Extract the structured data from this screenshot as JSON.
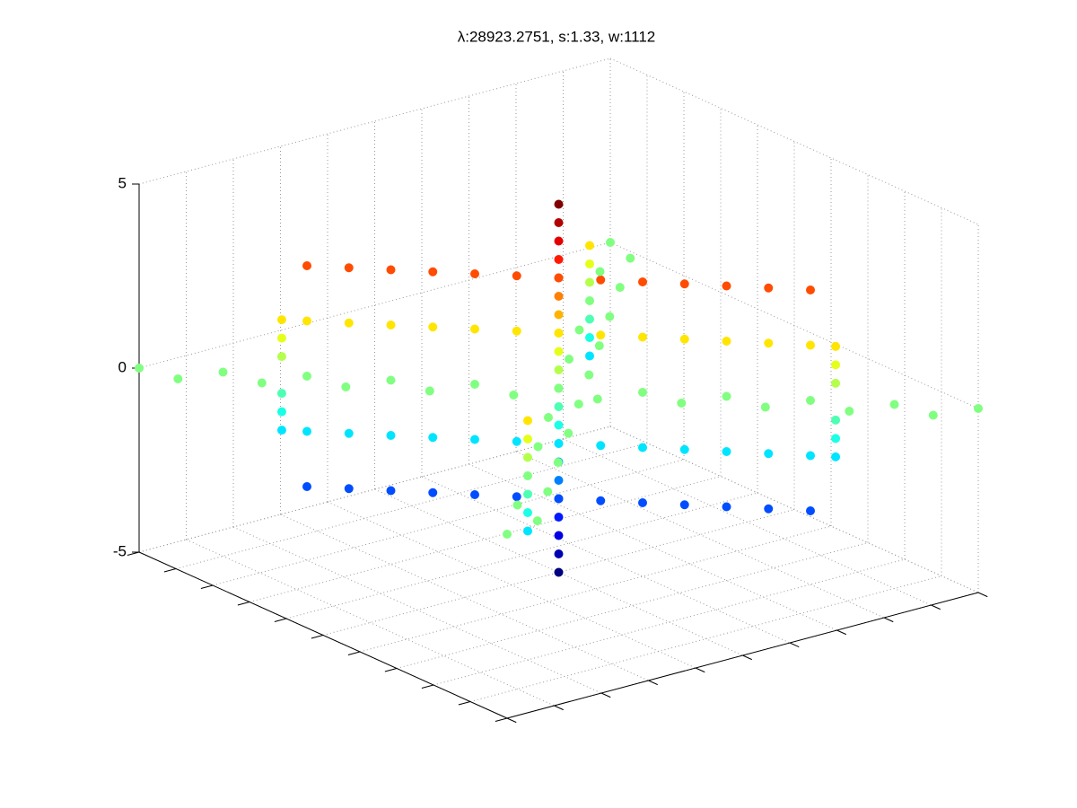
{
  "chart_data": {
    "type": "scatter3d",
    "title": "λ:28923.2751, s:1.33, w:1112",
    "colormap": "jet",
    "grid": true,
    "xlim": [
      -5,
      5
    ],
    "ylim": [
      -5,
      5
    ],
    "zlim": [
      -5,
      5
    ],
    "xticks": [
      -5,
      -4,
      -3,
      -2,
      -1,
      0,
      1,
      2,
      3,
      4,
      5
    ],
    "yticks": [
      -5,
      -4,
      -3,
      -2,
      -1,
      0,
      1,
      2,
      3,
      4,
      5
    ],
    "zticks": [
      -5,
      0,
      5
    ],
    "series": [
      {
        "x": [
          0,
          0,
          0,
          0,
          0,
          0,
          0,
          0,
          0,
          0,
          0,
          0,
          0,
          0,
          0,
          0,
          0,
          0,
          0,
          0,
          0
        ],
        "y": [
          0,
          0,
          0,
          0,
          0,
          0,
          0,
          0,
          0,
          0,
          0,
          0,
          0,
          0,
          0,
          0,
          0,
          0,
          0,
          0,
          0
        ],
        "z": [
          -5,
          -4.5,
          -4,
          -3.5,
          -3,
          -2.5,
          -2,
          -1.5,
          -1,
          -0.5,
          0,
          0.5,
          1,
          1.5,
          2,
          2.5,
          3,
          3.5,
          4,
          4.5,
          5
        ]
      },
      {
        "x": [
          -3,
          -2.5,
          -2,
          -1.5,
          -1,
          -0.5,
          0,
          0.5,
          1,
          1.5,
          2,
          2.5,
          3
        ],
        "y": [
          -3,
          -2.5,
          -2,
          -1.5,
          -1,
          -0.5,
          0,
          0.5,
          1,
          1.5,
          2,
          2.5,
          3
        ],
        "z": [
          3,
          3,
          3,
          3,
          3,
          3,
          3,
          3,
          3,
          3,
          3,
          3,
          3
        ]
      },
      {
        "x": [
          -3,
          -2.5,
          -2,
          -1.5,
          -1,
          -0.5,
          0,
          0.5,
          1,
          1.5,
          2,
          2.5,
          3
        ],
        "y": [
          -3,
          -2.5,
          -2,
          -1.5,
          -1,
          -0.5,
          0,
          0.5,
          1,
          1.5,
          2,
          2.5,
          3
        ],
        "z": [
          1.5,
          1.5,
          1.5,
          1.5,
          1.5,
          1.5,
          1.5,
          1.5,
          1.5,
          1.5,
          1.5,
          1.5,
          1.5
        ]
      },
      {
        "x": [
          -3,
          -2.5,
          -2,
          -1.5,
          -1,
          -0.5,
          0,
          0.5,
          1,
          1.5,
          2,
          2.5,
          3
        ],
        "y": [
          -3,
          -2.5,
          -2,
          -1.5,
          -1,
          -0.5,
          0,
          0.5,
          1,
          1.5,
          2,
          2.5,
          3
        ],
        "z": [
          -1.5,
          -1.5,
          -1.5,
          -1.5,
          -1.5,
          -1.5,
          -1.5,
          -1.5,
          -1.5,
          -1.5,
          -1.5,
          -1.5,
          -1.5
        ]
      },
      {
        "x": [
          -3,
          -2.5,
          -2,
          -1.5,
          -1,
          -0.5,
          0,
          0.5,
          1,
          1.5,
          2,
          2.5,
          3
        ],
        "y": [
          -3,
          -2.5,
          -2,
          -1.5,
          -1,
          -0.5,
          0,
          0.5,
          1,
          1.5,
          2,
          2.5,
          3
        ],
        "z": [
          -3,
          -3,
          -3,
          -3,
          -3,
          -3,
          -3,
          -3,
          -3,
          -3,
          -3,
          -3,
          -3
        ]
      },
      {
        "x": [
          -5,
          -4,
          -3,
          -2,
          -1,
          0,
          1,
          2,
          3,
          4,
          5
        ],
        "y": [
          -5,
          -4,
          -3,
          -2,
          -1,
          0,
          1,
          2,
          3,
          4,
          5
        ],
        "z": [
          0,
          0,
          0,
          0,
          0,
          0,
          0,
          0,
          0,
          0,
          0
        ]
      },
      {
        "x": [
          -4.2,
          -3.2,
          -2.2,
          -1.2,
          -0.2,
          0.8,
          1.8,
          2.8,
          3.8,
          4.8
        ],
        "y": [
          -4.8,
          -3.8,
          -2.8,
          -1.8,
          -0.8,
          0.2,
          1.2,
          2.2,
          3.2,
          4.2
        ],
        "z": [
          0,
          0,
          0,
          0,
          0,
          0,
          0,
          0,
          0,
          0
        ]
      },
      {
        "x": [
          -5,
          -4,
          -3,
          -2,
          -1,
          0,
          1,
          2,
          3,
          4,
          5
        ],
        "y": [
          5,
          4,
          3,
          2,
          1,
          0,
          -1,
          -2,
          -3,
          -4,
          -5
        ],
        "z": [
          0,
          0,
          0,
          0,
          0,
          0,
          0,
          0,
          0,
          0,
          0
        ]
      },
      {
        "x": [
          -4.2,
          -3.2,
          -2.2,
          -1.2,
          -0.2,
          0.8,
          1.8,
          2.8,
          3.8,
          4.8
        ],
        "y": [
          4.8,
          3.8,
          2.8,
          1.8,
          0.8,
          -0.2,
          -1.2,
          -2.2,
          -3.2,
          -4.2
        ],
        "z": [
          0,
          0,
          0,
          0,
          0,
          0,
          0,
          0,
          0,
          0
        ]
      },
      {
        "x": [
          -3.3,
          -3.3,
          -3.3,
          -3.3,
          -3.3,
          -3.3,
          3.3,
          3.3,
          3.3,
          3.3,
          3.3,
          3.3,
          3,
          3,
          3,
          3,
          3,
          3,
          -3,
          -3,
          -3,
          -3,
          -3,
          -3
        ],
        "y": [
          -3.3,
          -3.3,
          -3.3,
          -3.3,
          -3.3,
          -3.3,
          3.3,
          3.3,
          3.3,
          3.3,
          3.3,
          3.3,
          -3,
          -3,
          -3,
          -3,
          -3,
          -3,
          3,
          3,
          3,
          3,
          3,
          3
        ],
        "z": [
          -1.5,
          -1,
          -0.5,
          0.5,
          1,
          1.5,
          -1.5,
          -1,
          -0.5,
          0.5,
          1,
          1.5,
          -1.5,
          -1,
          -0.5,
          0.5,
          1,
          1.5,
          -1.5,
          -1,
          -0.5,
          0.5,
          1,
          1.5
        ]
      }
    ]
  }
}
